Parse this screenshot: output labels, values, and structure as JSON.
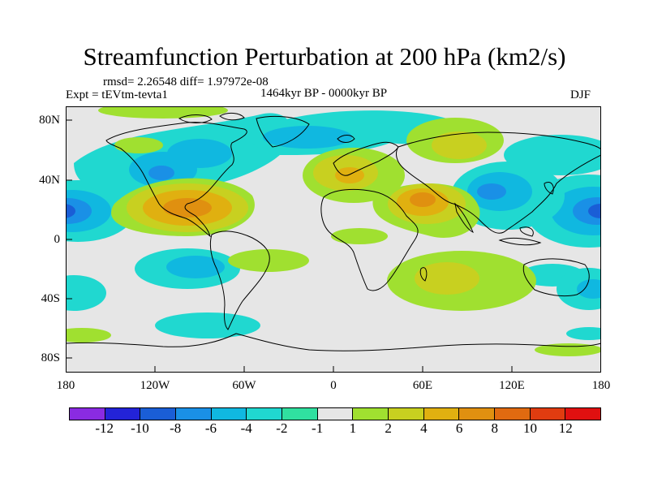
{
  "title": "Streamfunction Perturbation at 200 hPa (km2/s)",
  "stats": "rmsd= 2.26548 diff= 1.97972e-08",
  "expt": "Expt = tEVtm-tevta1",
  "period": "1464kyr BP - 0000kyr BP",
  "season": "DJF",
  "axes": {
    "x_ticks": [
      "180",
      "120W",
      "60W",
      "0",
      "60E",
      "120E",
      "180"
    ],
    "y_ticks": [
      "80N",
      "40N",
      "0",
      "40S",
      "80S"
    ]
  },
  "colorbar": {
    "labels": [
      "-12",
      "-10",
      "-8",
      "-6",
      "-4",
      "-2",
      "-1",
      "1",
      "2",
      "4",
      "6",
      "8",
      "10",
      "12"
    ],
    "colors": [
      "#8a2be2",
      "#2323d8",
      "#1a5ed6",
      "#1a90e6",
      "#10b8e0",
      "#20d8d0",
      "#30e0a0",
      "#e6e6e6",
      "#a0e030",
      "#c8d020",
      "#e0b010",
      "#e09010",
      "#e06a10",
      "#e03c10",
      "#e01010"
    ]
  },
  "colors": {
    "land_outline": "#000000",
    "map_background": "#e6e6e6"
  }
}
